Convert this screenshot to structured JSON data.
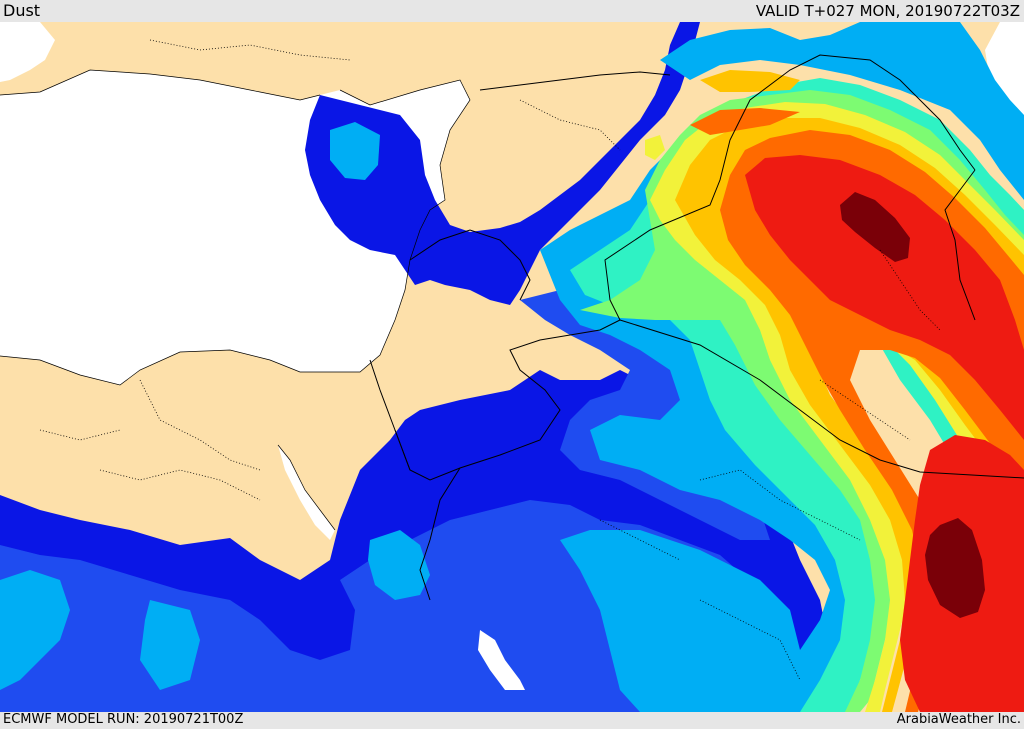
{
  "header": {
    "product": "Dust",
    "valid_time": "VALID T+027 MON, 20190722T03Z"
  },
  "footer": {
    "model_run": "ECMWF MODEL RUN: 20190721T00Z",
    "credit": "ArabiaWeather Inc."
  },
  "map": {
    "colors": {
      "land": "#fde0aa",
      "sea": "#ffffff",
      "navy": "#0a16e6",
      "blue": "#1f4cf0",
      "cyan": "#00aef4",
      "aqua": "#2ff2c4",
      "green": "#7dfb72",
      "yellow": "#f2f23a",
      "gold": "#ffc300",
      "orange": "#ff6a00",
      "red": "#ee1b12",
      "darkred": "#7a0008"
    }
  }
}
